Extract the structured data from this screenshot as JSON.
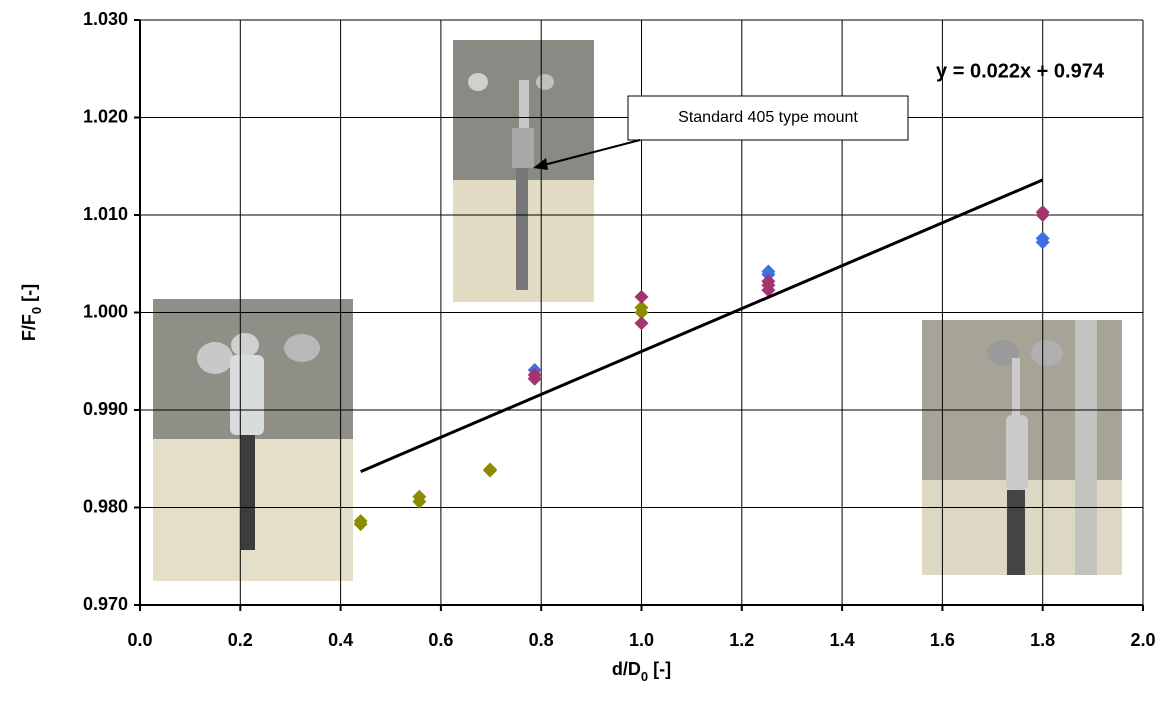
{
  "chart_data": {
    "type": "scatter",
    "xlabel": [
      "d/D",
      "0",
      " [-]"
    ],
    "ylabel": [
      "F/F",
      "0",
      " [-]"
    ],
    "xlim": [
      0,
      2.0
    ],
    "ylim": [
      0.97,
      1.03
    ],
    "xticks": [
      {
        "value": 0,
        "label": "0.0"
      },
      {
        "value": 0.2,
        "label": "0.2"
      },
      {
        "value": 0.4,
        "label": "0.4"
      },
      {
        "value": 0.6,
        "label": "0.6"
      },
      {
        "value": 0.8,
        "label": "0.8"
      },
      {
        "value": 1.0,
        "label": "1.0"
      },
      {
        "value": 1.2,
        "label": "1.2"
      },
      {
        "value": 1.4,
        "label": "1.4"
      },
      {
        "value": 1.6,
        "label": "1.6"
      },
      {
        "value": 1.8,
        "label": "1.8"
      },
      {
        "value": 2.0,
        "label": "2.0"
      }
    ],
    "yticks": [
      {
        "value": 0.97,
        "label": "0.970"
      },
      {
        "value": 0.98,
        "label": "0.980"
      },
      {
        "value": 0.99,
        "label": "0.990"
      },
      {
        "value": 1.0,
        "label": "1.000"
      },
      {
        "value": 1.01,
        "label": "1.010"
      },
      {
        "value": 1.02,
        "label": "1.020"
      },
      {
        "value": 1.03,
        "label": "1.030"
      }
    ],
    "grid": true,
    "series": [
      {
        "color": "#8c8c00",
        "x": [
          0.44,
          0.44,
          0.557,
          0.557,
          0.698,
          0.698,
          1.0,
          1.0
        ],
        "values": [
          0.9786,
          0.9783,
          0.9811,
          0.9806,
          0.9839,
          0.9838,
          1.0005,
          1.0
        ]
      },
      {
        "color": "#3f6fe0",
        "x": [
          0.787,
          1.253,
          1.253,
          1.8,
          1.8
        ],
        "values": [
          0.9941,
          1.0042,
          1.0039,
          1.0076,
          1.0072
        ]
      },
      {
        "color": "#a3346e",
        "x": [
          0.787,
          0.787,
          1.0,
          1.0,
          1.253,
          1.253,
          1.253,
          1.8,
          1.8
        ],
        "values": [
          0.9936,
          0.9932,
          1.0016,
          0.9989,
          1.0032,
          1.0028,
          1.0023,
          1.0103,
          1.01
        ]
      }
    ],
    "trendline": {
      "color": "#000000",
      "x": [
        0.44,
        1.8
      ],
      "values": [
        0.98368,
        1.0136
      ],
      "label": "y = 0.022x + 0.974"
    },
    "annotation": "Standard 405 type mount"
  }
}
